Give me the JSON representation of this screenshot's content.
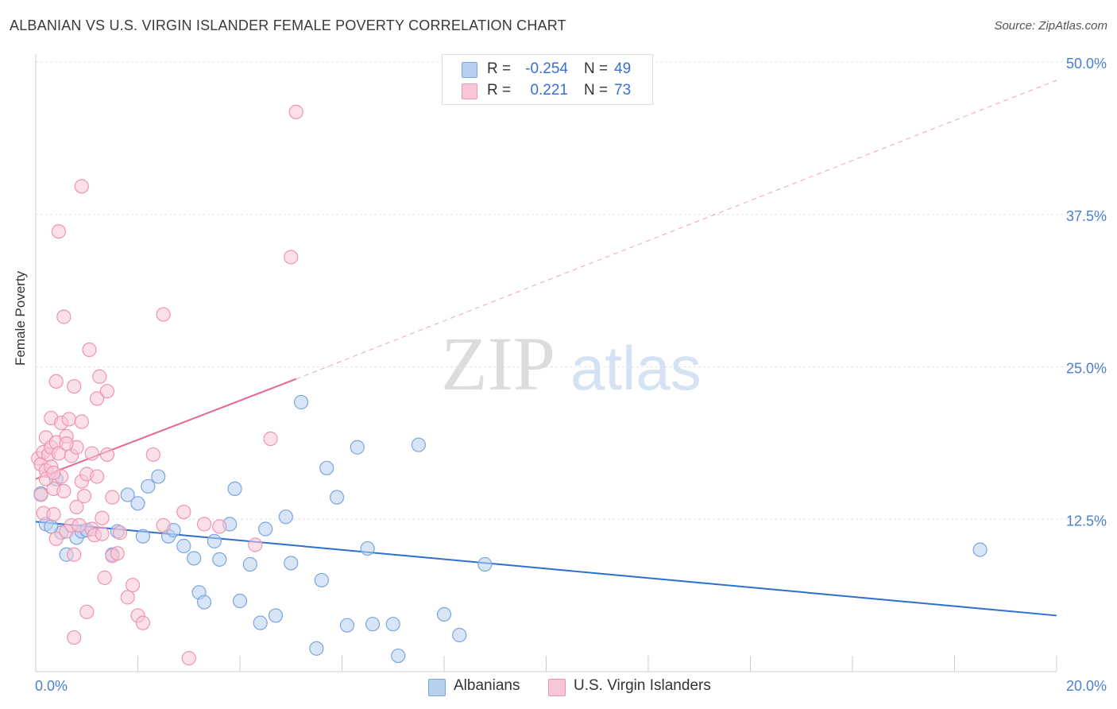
{
  "header": {
    "title": "ALBANIAN VS U.S. VIRGIN ISLANDER FEMALE POVERTY CORRELATION CHART",
    "source": "Source: ZipAtlas.com"
  },
  "stats": {
    "albanians": {
      "r_label": "R =",
      "r_value": "-0.254",
      "n_label": "N =",
      "n_value": "49"
    },
    "virgin_islanders": {
      "r_label": "R =",
      "r_value": "0.221",
      "n_label": "N =",
      "n_value": "73"
    }
  },
  "legend": {
    "series_a": "Albanians",
    "series_b": "U.S. Virgin Islanders"
  },
  "watermark": {
    "zip": "ZIP",
    "atlas": "atlas"
  },
  "colors": {
    "blue": "#7aa6e0",
    "blue_fill": "#b8d0f0",
    "blue_line": "#2f6fcf",
    "pink": "#ee94b1",
    "pink_fill": "#f8c6d6",
    "pink_line": "#e6658f",
    "tick_text": "#4a7fd0",
    "grid": "#e3e3e3"
  },
  "chart_data": {
    "type": "scatter",
    "title": "ALBANIAN VS U.S. VIRGIN ISLANDER FEMALE POVERTY CORRELATION CHART",
    "xlabel": "",
    "ylabel": "Female Poverty",
    "xlim": [
      0,
      20
    ],
    "ylim": [
      0,
      50
    ],
    "x_tick_labels": [
      "0.0%",
      "20.0%"
    ],
    "y_ticks": [
      12.5,
      25.0,
      37.5,
      50.0
    ],
    "y_tick_labels": [
      "12.5%",
      "25.0%",
      "37.5%",
      "50.0%"
    ],
    "series": [
      {
        "name": "Albanians",
        "r": -0.254,
        "n": 49,
        "trend": {
          "x0": 0,
          "y0": 12.3,
          "x1": 20,
          "y1": 4.6
        },
        "points": [
          [
            0.1,
            14.6
          ],
          [
            0.2,
            12.1
          ],
          [
            0.4,
            15.8
          ],
          [
            0.5,
            11.4
          ],
          [
            0.6,
            9.6
          ],
          [
            0.8,
            11.0
          ],
          [
            0.9,
            11.5
          ],
          [
            1.0,
            11.6
          ],
          [
            1.5,
            9.6
          ],
          [
            1.6,
            11.5
          ],
          [
            1.8,
            14.5
          ],
          [
            2.0,
            13.8
          ],
          [
            2.1,
            11.1
          ],
          [
            2.2,
            15.2
          ],
          [
            2.4,
            16.0
          ],
          [
            2.6,
            11.1
          ],
          [
            2.7,
            11.6
          ],
          [
            2.9,
            10.3
          ],
          [
            3.1,
            9.3
          ],
          [
            3.2,
            6.5
          ],
          [
            3.3,
            5.7
          ],
          [
            3.5,
            10.7
          ],
          [
            3.6,
            9.2
          ],
          [
            3.8,
            12.1
          ],
          [
            3.9,
            15.0
          ],
          [
            4.0,
            5.8
          ],
          [
            4.2,
            8.8
          ],
          [
            4.4,
            4.0
          ],
          [
            4.5,
            11.7
          ],
          [
            4.7,
            4.6
          ],
          [
            4.9,
            12.7
          ],
          [
            5.0,
            8.9
          ],
          [
            5.2,
            22.1
          ],
          [
            5.5,
            1.9
          ],
          [
            5.6,
            7.5
          ],
          [
            5.7,
            16.7
          ],
          [
            5.9,
            14.3
          ],
          [
            6.1,
            3.8
          ],
          [
            6.3,
            18.4
          ],
          [
            6.5,
            10.1
          ],
          [
            6.6,
            3.9
          ],
          [
            7.0,
            3.9
          ],
          [
            7.1,
            1.3
          ],
          [
            7.5,
            18.6
          ],
          [
            8.0,
            4.7
          ],
          [
            8.3,
            3.0
          ],
          [
            8.8,
            8.8
          ],
          [
            18.5,
            10.0
          ],
          [
            0.3,
            11.9
          ]
        ]
      },
      {
        "name": "U.S. Virgin Islanders",
        "r": 0.221,
        "n": 73,
        "trend": {
          "x0": 0,
          "y0": 15.8,
          "x1": 5.1,
          "y1": 24.0,
          "dashed_to": {
            "x": 20,
            "y": 48.5
          }
        },
        "points": [
          [
            0.05,
            17.5
          ],
          [
            0.1,
            17.0
          ],
          [
            0.1,
            14.5
          ],
          [
            0.15,
            18.0
          ],
          [
            0.15,
            13.0
          ],
          [
            0.2,
            16.5
          ],
          [
            0.2,
            19.2
          ],
          [
            0.25,
            17.8
          ],
          [
            0.3,
            18.4
          ],
          [
            0.3,
            16.8
          ],
          [
            0.3,
            20.8
          ],
          [
            0.35,
            15.0
          ],
          [
            0.35,
            12.9
          ],
          [
            0.4,
            18.8
          ],
          [
            0.4,
            23.8
          ],
          [
            0.4,
            10.9
          ],
          [
            0.45,
            36.1
          ],
          [
            0.45,
            17.9
          ],
          [
            0.5,
            20.4
          ],
          [
            0.5,
            16.0
          ],
          [
            0.55,
            29.1
          ],
          [
            0.55,
            14.8
          ],
          [
            0.6,
            19.3
          ],
          [
            0.6,
            11.5
          ],
          [
            0.65,
            20.7
          ],
          [
            0.7,
            17.7
          ],
          [
            0.7,
            12.0
          ],
          [
            0.75,
            23.4
          ],
          [
            0.75,
            9.6
          ],
          [
            0.75,
            2.8
          ],
          [
            0.8,
            18.4
          ],
          [
            0.8,
            13.5
          ],
          [
            0.85,
            12.0
          ],
          [
            0.9,
            39.8
          ],
          [
            0.9,
            15.6
          ],
          [
            0.9,
            20.5
          ],
          [
            0.95,
            14.4
          ],
          [
            1.0,
            16.2
          ],
          [
            1.0,
            4.9
          ],
          [
            1.05,
            26.4
          ],
          [
            1.1,
            17.9
          ],
          [
            1.1,
            11.7
          ],
          [
            1.15,
            11.2
          ],
          [
            1.2,
            22.4
          ],
          [
            1.2,
            16.0
          ],
          [
            1.25,
            24.2
          ],
          [
            1.3,
            12.6
          ],
          [
            1.3,
            11.3
          ],
          [
            1.35,
            7.7
          ],
          [
            1.4,
            23.0
          ],
          [
            1.4,
            17.8
          ],
          [
            1.5,
            9.5
          ],
          [
            1.5,
            14.3
          ],
          [
            1.6,
            9.7
          ],
          [
            1.8,
            6.1
          ],
          [
            1.9,
            7.1
          ],
          [
            2.0,
            4.6
          ],
          [
            2.1,
            4.0
          ],
          [
            2.3,
            17.8
          ],
          [
            2.5,
            12.0
          ],
          [
            2.5,
            29.3
          ],
          [
            2.9,
            13.1
          ],
          [
            3.0,
            1.1
          ],
          [
            3.3,
            12.1
          ],
          [
            3.6,
            11.9
          ],
          [
            4.3,
            10.4
          ],
          [
            4.6,
            19.1
          ],
          [
            5.0,
            34.0
          ],
          [
            5.1,
            45.9
          ],
          [
            0.6,
            18.7
          ],
          [
            0.2,
            15.8
          ],
          [
            0.35,
            16.3
          ],
          [
            1.65,
            11.4
          ]
        ]
      }
    ]
  }
}
